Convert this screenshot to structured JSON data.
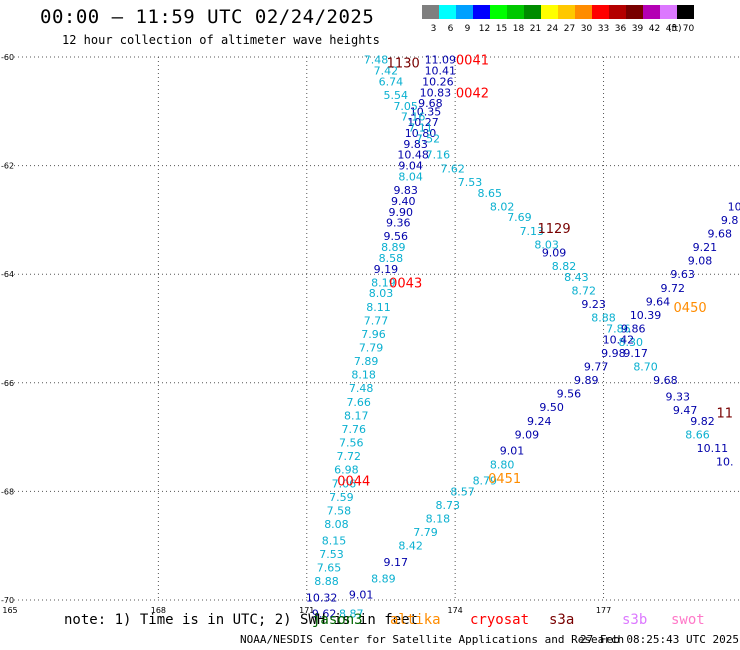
{
  "header": {
    "title": "00:00 – 11:59 UTC 02/24/2025",
    "subtitle": "12 hour collection of altimeter wave heights"
  },
  "colorbar": {
    "bins": [
      {
        "label": "3",
        "color": "#7f7f7f"
      },
      {
        "label": "6",
        "color": "#00ffff"
      },
      {
        "label": "9",
        "color": "#00a0ff"
      },
      {
        "label": "12",
        "color": "#0000ff"
      },
      {
        "label": "15",
        "color": "#00ff00"
      },
      {
        "label": "18",
        "color": "#00c800"
      },
      {
        "label": "21",
        "color": "#008c00"
      },
      {
        "label": "24",
        "color": "#ffff00"
      },
      {
        "label": "27",
        "color": "#ffc800"
      },
      {
        "label": "30",
        "color": "#ff8c00"
      },
      {
        "label": "33",
        "color": "#ff0000"
      },
      {
        "label": "36",
        "color": "#b40000"
      },
      {
        "label": "39",
        "color": "#780000"
      },
      {
        "label": "42",
        "color": "#b400b4"
      },
      {
        "label": "45",
        "color": "#dc78ff"
      },
      {
        "label": "70",
        "color": "#000000"
      }
    ],
    "unit": "(ft)"
  },
  "note_text": "note: 1) Time is in UTC; 2) SWH is in feet",
  "legend": [
    {
      "label": "jason3",
      "color": "#006400"
    },
    {
      "label": "altika",
      "color": "#ff8c00"
    },
    {
      "label": "cryosat",
      "color": "#ff0000"
    },
    {
      "label": "s3a",
      "color": "#780000"
    },
    {
      "label": "s3b",
      "color": "#dc78ff"
    },
    {
      "label": "swot",
      "color": "#ff78c8"
    }
  ],
  "footer": {
    "center": "NOAA/NESDIS Center for Satellite Applications and Research",
    "timestamp": "27 Feb 08:25:43 UTC 2025"
  },
  "chart_data": {
    "type": "scatter",
    "xlim": [
      165,
      179.5
    ],
    "ylim": [
      -70,
      -60
    ],
    "x_ticks": [
      165,
      168,
      171,
      174,
      177
    ],
    "y_ticks": [
      -60,
      -62,
      -64,
      -66,
      -68,
      -70
    ],
    "grid": true,
    "series": [
      {
        "points": [
          {
            "x": 173.7,
            "y": -60.05,
            "v": "11.09",
            "c": "#0000aa"
          },
          {
            "x": 173.7,
            "y": -60.25,
            "v": "10.41",
            "c": "#0000aa"
          },
          {
            "x": 173.65,
            "y": -60.45,
            "v": "10.26",
            "c": "#0000aa"
          },
          {
            "x": 173.6,
            "y": -60.65,
            "v": "10.83",
            "c": "#0000aa"
          },
          {
            "x": 173.5,
            "y": -60.85,
            "v": "9.68",
            "c": "#0000aa"
          },
          {
            "x": 173.4,
            "y": -61.0,
            "v": "10.35",
            "c": "#0000aa"
          },
          {
            "x": 173.35,
            "y": -61.2,
            "v": "10.27",
            "c": "#0000aa"
          },
          {
            "x": 173.3,
            "y": -61.4,
            "v": "10.80",
            "c": "#0000aa"
          },
          {
            "x": 173.2,
            "y": -61.6,
            "v": "9.83",
            "c": "#0000aa"
          },
          {
            "x": 173.15,
            "y": -61.8,
            "v": "10.48",
            "c": "#0000aa"
          },
          {
            "x": 173.1,
            "y": -62.0,
            "v": "9.04",
            "c": "#0000aa"
          },
          {
            "x": 173.1,
            "y": -62.2,
            "v": "8.04",
            "c": "#0ab0d0"
          },
          {
            "x": 173.0,
            "y": -62.45,
            "v": "9.83",
            "c": "#0000aa"
          },
          {
            "x": 172.95,
            "y": -62.65,
            "v": "9.40",
            "c": "#0000aa"
          },
          {
            "x": 172.9,
            "y": -62.85,
            "v": "9.90",
            "c": "#0000aa"
          },
          {
            "x": 172.85,
            "y": -63.05,
            "v": "9.36",
            "c": "#0000aa"
          },
          {
            "x": 172.8,
            "y": -63.3,
            "v": "9.56",
            "c": "#0000aa"
          },
          {
            "x": 172.75,
            "y": -63.5,
            "v": "8.89",
            "c": "#0ab0d0"
          },
          {
            "x": 172.7,
            "y": -63.7,
            "v": "8.58",
            "c": "#0ab0d0"
          },
          {
            "x": 172.6,
            "y": -63.9,
            "v": "9.19",
            "c": "#0000aa"
          },
          {
            "x": 172.55,
            "y": -64.15,
            "v": "8.19",
            "c": "#0ab0d0"
          },
          {
            "x": 172.5,
            "y": -64.35,
            "v": "8.03",
            "c": "#0ab0d0"
          },
          {
            "x": 172.45,
            "y": -64.6,
            "v": "8.11",
            "c": "#0ab0d0"
          },
          {
            "x": 172.4,
            "y": -64.85,
            "v": "7.77",
            "c": "#0ab0d0"
          },
          {
            "x": 172.35,
            "y": -65.1,
            "v": "7.96",
            "c": "#0ab0d0"
          },
          {
            "x": 172.3,
            "y": -65.35,
            "v": "7.79",
            "c": "#0ab0d0"
          },
          {
            "x": 172.2,
            "y": -65.6,
            "v": "7.89",
            "c": "#0ab0d0"
          },
          {
            "x": 172.15,
            "y": -65.85,
            "v": "8.18",
            "c": "#0ab0d0"
          },
          {
            "x": 172.1,
            "y": -66.1,
            "v": "7.48",
            "c": "#0ab0d0"
          },
          {
            "x": 172.05,
            "y": -66.35,
            "v": "7.66",
            "c": "#0ab0d0"
          },
          {
            "x": 172.0,
            "y": -66.6,
            "v": "8.17",
            "c": "#0ab0d0"
          },
          {
            "x": 171.95,
            "y": -66.85,
            "v": "7.76",
            "c": "#0ab0d0"
          },
          {
            "x": 171.9,
            "y": -67.1,
            "v": "7.56",
            "c": "#0ab0d0"
          },
          {
            "x": 171.85,
            "y": -67.35,
            "v": "7.72",
            "c": "#0ab0d0"
          },
          {
            "x": 171.8,
            "y": -67.6,
            "v": "6.98",
            "c": "#0ab0d0"
          },
          {
            "x": 171.75,
            "y": -67.85,
            "v": "7.06",
            "c": "#0ab0d0"
          },
          {
            "x": 171.7,
            "y": -68.1,
            "v": "7.59",
            "c": "#0ab0d0"
          },
          {
            "x": 171.65,
            "y": -68.35,
            "v": "7.58",
            "c": "#0ab0d0"
          },
          {
            "x": 171.6,
            "y": -68.6,
            "v": "8.08",
            "c": "#0ab0d0"
          },
          {
            "x": 171.55,
            "y": -68.9,
            "v": "8.15",
            "c": "#0ab0d0"
          },
          {
            "x": 171.5,
            "y": -69.15,
            "v": "7.53",
            "c": "#0ab0d0"
          },
          {
            "x": 171.45,
            "y": -69.4,
            "v": "7.65",
            "c": "#0ab0d0"
          },
          {
            "x": 171.4,
            "y": -69.65,
            "v": "8.88",
            "c": "#0ab0d0"
          },
          {
            "x": 171.3,
            "y": -69.95,
            "v": "10.32",
            "c": "#0000aa"
          },
          {
            "x": 171.35,
            "y": -70.25,
            "v": "9.62",
            "c": "#0000aa"
          }
        ]
      },
      {
        "points": [
          {
            "x": 172.4,
            "y": -60.05,
            "v": "7.48",
            "c": "#0ab0d0"
          },
          {
            "x": 172.6,
            "y": -60.25,
            "v": "7.42",
            "c": "#0ab0d0"
          },
          {
            "x": 172.7,
            "y": -60.45,
            "v": "6.74",
            "c": "#0ab0d0"
          },
          {
            "x": 172.8,
            "y": -60.7,
            "v": "5.54",
            "c": "#0ab0d0"
          },
          {
            "x": 173.0,
            "y": -60.9,
            "v": "7.05",
            "c": "#0ab0d0"
          },
          {
            "x": 173.15,
            "y": -61.1,
            "v": "7.16",
            "c": "#0ab0d0"
          },
          {
            "x": 173.3,
            "y": -61.3,
            "v": "7.11",
            "c": "#0ab0d0"
          },
          {
            "x": 173.45,
            "y": -61.5,
            "v": "7.52",
            "c": "#0ab0d0"
          },
          {
            "x": 173.65,
            "y": -61.8,
            "v": "7.16",
            "c": "#0ab0d0"
          },
          {
            "x": 173.95,
            "y": -62.05,
            "v": "7.62",
            "c": "#0ab0d0"
          },
          {
            "x": 174.3,
            "y": -62.3,
            "v": "7.53",
            "c": "#0ab0d0"
          },
          {
            "x": 174.7,
            "y": -62.5,
            "v": "8.65",
            "c": "#0ab0d0"
          },
          {
            "x": 174.95,
            "y": -62.75,
            "v": "8.02",
            "c": "#0ab0d0"
          },
          {
            "x": 175.3,
            "y": -62.95,
            "v": "7.69",
            "c": "#0ab0d0"
          },
          {
            "x": 175.55,
            "y": -63.2,
            "v": "7.13",
            "c": "#0ab0d0"
          },
          {
            "x": 175.85,
            "y": -63.45,
            "v": "8.03",
            "c": "#0ab0d0"
          },
          {
            "x": 176.0,
            "y": -63.6,
            "v": "9.09",
            "c": "#0000aa"
          },
          {
            "x": 176.2,
            "y": -63.85,
            "v": "8.82",
            "c": "#0ab0d0"
          },
          {
            "x": 176.45,
            "y": -64.05,
            "v": "8.43",
            "c": "#0ab0d0"
          },
          {
            "x": 176.6,
            "y": -64.3,
            "v": "8.72",
            "c": "#0ab0d0"
          },
          {
            "x": 176.8,
            "y": -64.55,
            "v": "9.23",
            "c": "#0000aa"
          },
          {
            "x": 177.0,
            "y": -64.8,
            "v": "8.88",
            "c": "#0ab0d0"
          },
          {
            "x": 177.3,
            "y": -65.0,
            "v": "7.86",
            "c": "#0ab0d0"
          },
          {
            "x": 177.55,
            "y": -65.25,
            "v": "8.30",
            "c": "#0ab0d0"
          },
          {
            "x": 177.65,
            "y": -65.45,
            "v": "9.17",
            "c": "#0000aa"
          },
          {
            "x": 177.85,
            "y": -65.7,
            "v": "8.70",
            "c": "#0ab0d0"
          },
          {
            "x": 178.25,
            "y": -65.95,
            "v": "9.68",
            "c": "#0000aa"
          },
          {
            "x": 178.5,
            "y": -66.25,
            "v": "9.33",
            "c": "#0000aa"
          },
          {
            "x": 178.65,
            "y": -66.5,
            "v": "9.47",
            "c": "#0000aa"
          },
          {
            "x": 179.0,
            "y": -66.7,
            "v": "9.82",
            "c": "#0000aa"
          },
          {
            "x": 178.9,
            "y": -66.95,
            "v": "8.66",
            "c": "#0ab0d0"
          },
          {
            "x": 179.2,
            "y": -67.2,
            "v": "10.11",
            "c": "#0000aa"
          },
          {
            "x": 179.45,
            "y": -67.45,
            "v": "10.",
            "c": "#0000aa"
          }
        ]
      },
      {
        "points": [
          {
            "x": 171.9,
            "y": -70.25,
            "v": "8.87",
            "c": "#0ab0d0"
          },
          {
            "x": 172.1,
            "y": -69.9,
            "v": "9.01",
            "c": "#0000aa"
          },
          {
            "x": 172.55,
            "y": -69.6,
            "v": "8.89",
            "c": "#0ab0d0"
          },
          {
            "x": 172.8,
            "y": -69.3,
            "v": "9.17",
            "c": "#0000aa"
          },
          {
            "x": 173.1,
            "y": -69.0,
            "v": "8.42",
            "c": "#0ab0d0"
          },
          {
            "x": 173.4,
            "y": -68.75,
            "v": "7.79",
            "c": "#0ab0d0"
          },
          {
            "x": 173.65,
            "y": -68.5,
            "v": "8.18",
            "c": "#0ab0d0"
          },
          {
            "x": 173.85,
            "y": -68.25,
            "v": "8.73",
            "c": "#0ab0d0"
          },
          {
            "x": 174.15,
            "y": -68.0,
            "v": "8.57",
            "c": "#0ab0d0"
          },
          {
            "x": 174.6,
            "y": -67.8,
            "v": "8.79",
            "c": "#0ab0d0"
          },
          {
            "x": 174.95,
            "y": -67.5,
            "v": "8.80",
            "c": "#0ab0d0"
          },
          {
            "x": 175.15,
            "y": -67.25,
            "v": "9.01",
            "c": "#0000aa"
          },
          {
            "x": 175.45,
            "y": -66.95,
            "v": "9.09",
            "c": "#0000aa"
          },
          {
            "x": 175.7,
            "y": -66.7,
            "v": "9.24",
            "c": "#0000aa"
          },
          {
            "x": 175.95,
            "y": -66.45,
            "v": "9.50",
            "c": "#0000aa"
          },
          {
            "x": 176.3,
            "y": -66.2,
            "v": "9.56",
            "c": "#0000aa"
          },
          {
            "x": 176.65,
            "y": -65.95,
            "v": "9.89",
            "c": "#0000aa"
          },
          {
            "x": 176.85,
            "y": -65.7,
            "v": "9.77",
            "c": "#0000aa"
          },
          {
            "x": 177.2,
            "y": -65.45,
            "v": "9.98",
            "c": "#0000aa"
          },
          {
            "x": 177.3,
            "y": -65.2,
            "v": "10.42",
            "c": "#0000aa"
          },
          {
            "x": 177.6,
            "y": -65.0,
            "v": "9.86",
            "c": "#0000aa"
          },
          {
            "x": 177.85,
            "y": -64.75,
            "v": "10.39",
            "c": "#0000aa"
          },
          {
            "x": 178.1,
            "y": -64.5,
            "v": "9.64",
            "c": "#0000aa"
          },
          {
            "x": 178.4,
            "y": -64.25,
            "v": "9.72",
            "c": "#0000aa"
          },
          {
            "x": 178.6,
            "y": -64.0,
            "v": "9.63",
            "c": "#0000aa"
          },
          {
            "x": 178.95,
            "y": -63.75,
            "v": "9.08",
            "c": "#0000aa"
          },
          {
            "x": 179.05,
            "y": -63.5,
            "v": "9.21",
            "c": "#0000aa"
          },
          {
            "x": 179.35,
            "y": -63.25,
            "v": "9.68",
            "c": "#0000aa"
          },
          {
            "x": 179.55,
            "y": -63.0,
            "v": "9.8",
            "c": "#0000aa"
          },
          {
            "x": 179.65,
            "y": -62.75,
            "v": "10",
            "c": "#0000aa"
          }
        ]
      }
    ],
    "time_labels": [
      {
        "x": 172.95,
        "y": -60.1,
        "v": "1130",
        "c": "#780000"
      },
      {
        "x": 174.35,
        "y": -60.05,
        "v": "0041",
        "c": "#ff0000"
      },
      {
        "x": 174.35,
        "y": -60.65,
        "v": "0042",
        "c": "#ff0000"
      },
      {
        "x": 176.0,
        "y": -63.15,
        "v": "1129",
        "c": "#780000"
      },
      {
        "x": 173.0,
        "y": -64.15,
        "v": "0043",
        "c": "#ff0000"
      },
      {
        "x": 178.75,
        "y": -64.6,
        "v": "0450",
        "c": "#ff8c00"
      },
      {
        "x": 179.45,
        "y": -66.55,
        "v": "11",
        "c": "#780000"
      },
      {
        "x": 171.95,
        "y": -67.8,
        "v": "0044",
        "c": "#ff0000"
      },
      {
        "x": 175.0,
        "y": -67.75,
        "v": "0451",
        "c": "#ff8c00"
      }
    ]
  }
}
